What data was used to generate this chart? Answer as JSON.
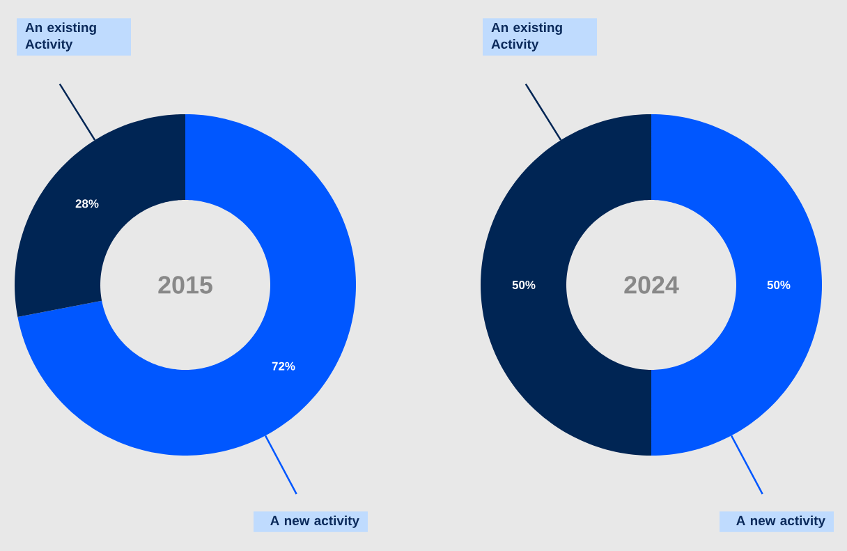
{
  "chart_data": [
    {
      "type": "donut",
      "title": "2015",
      "categories": [
        "A new activity",
        "An existing Activity"
      ],
      "values": [
        72,
        28
      ],
      "value_labels": [
        "72%",
        "28%"
      ],
      "colors": [
        "#0057ff",
        "#002554"
      ]
    },
    {
      "type": "donut",
      "title": "2024",
      "categories": [
        "A new activity",
        "An existing Activity"
      ],
      "values": [
        50,
        50
      ],
      "value_labels": [
        "50%",
        "50%"
      ],
      "colors": [
        "#0057ff",
        "#002554"
      ]
    }
  ]
}
